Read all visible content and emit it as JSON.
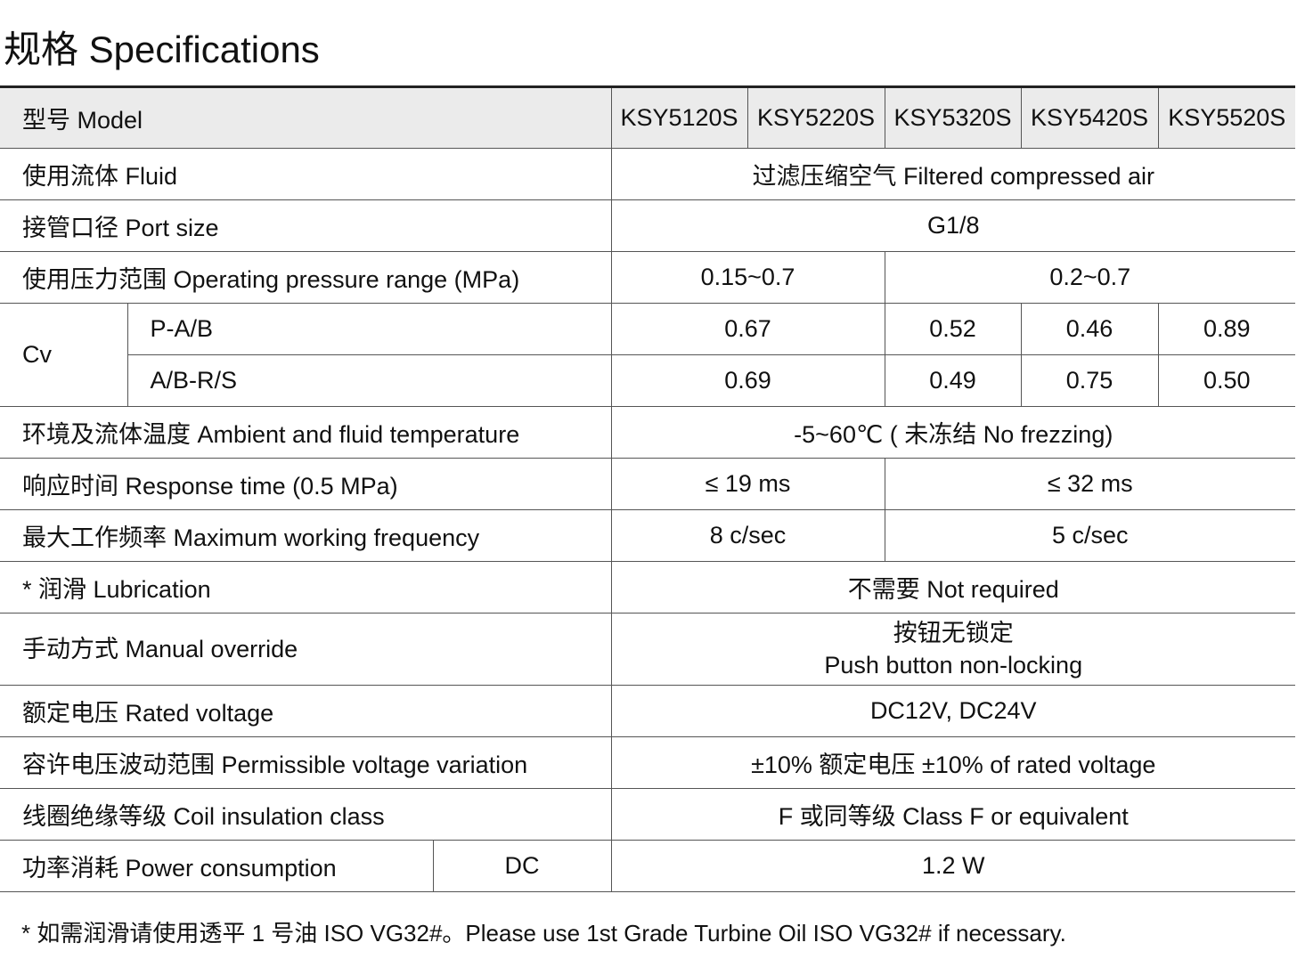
{
  "title": "规格 Specifications",
  "models": [
    "KSY5120S",
    "KSY5220S",
    "KSY5320S",
    "KSY5420S",
    "KSY5520S"
  ],
  "rows": {
    "model": "型号 Model",
    "fluid": {
      "label": "使用流体 Fluid",
      "value": "过滤压缩空气 Filtered compressed air"
    },
    "port": {
      "label": "接管口径 Port size",
      "value": "G1/8"
    },
    "pressure": {
      "label": "使用压力范围 Operating pressure range (MPa)",
      "v1": "0.15~0.7",
      "v2": "0.2~0.7"
    },
    "cv": {
      "label": "Cv",
      "pab": {
        "label": "P-A/B",
        "values": [
          "0.67",
          "0.52",
          "0.46",
          "0.89"
        ]
      },
      "abrs": {
        "label": "A/B-R/S",
        "values": [
          "0.69",
          "0.49",
          "0.75",
          "0.50"
        ]
      }
    },
    "temp": {
      "label": "环境及流体温度  Ambient and fluid temperature",
      "value": "-5~60℃ ( 未冻结 No frezzing)"
    },
    "response": {
      "label": "响应时间 Response time (0.5 MPa)",
      "v1": "≤ 19 ms",
      "v2": "≤ 32 ms"
    },
    "freq": {
      "label": "最大工作频率 Maximum working frequency",
      "v1": "8 c/sec",
      "v2": "5 c/sec"
    },
    "lube": {
      "label": "* 润滑  Lubrication",
      "value": "不需要 Not required"
    },
    "manual": {
      "label": "手动方式 Manual override",
      "value1": "按钮无锁定",
      "value2": "Push button non-locking"
    },
    "voltage": {
      "label": "额定电压 Rated voltage",
      "value": "DC12V, DC24V"
    },
    "variation": {
      "label": "容许电压波动范围 Permissible voltage variation",
      "value": "±10% 额定电压 ±10% of rated voltage"
    },
    "coil": {
      "label": "线圈绝缘等级 Coil insulation class",
      "value": "F 或同等级 Class F or equivalent"
    },
    "power": {
      "label": "功率消耗 Power consumption",
      "sub": "DC",
      "value": "1.2 W"
    }
  },
  "footnote": "* 如需润滑请使用透平 1 号油 ISO VG32#。Please use 1st Grade Turbine Oil ISO VG32# if necessary."
}
